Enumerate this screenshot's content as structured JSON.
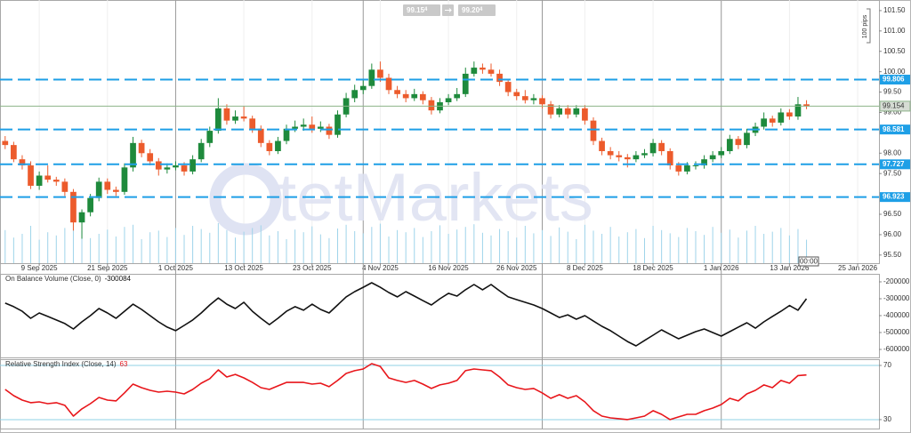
{
  "chart_data": [
    {
      "type": "candlestick",
      "bid": {
        "price": "99.15",
        "pip": "4"
      },
      "ask": {
        "price": "99.20",
        "pip": "4"
      },
      "range_note": "100 pips",
      "time_marker": "00:00",
      "watermark": "tetMarkets",
      "up_color": "#1e8a3c",
      "down_color": "#ec5b2c",
      "volume_color": "#9fd4ea",
      "volume_lim": [
        0,
        100
      ],
      "xlim": [
        -0.5,
        102.5
      ],
      "xticks": [
        {
          "value": 4,
          "label": "9 Sep 2025"
        },
        {
          "value": 12,
          "label": "21 Sep 2025"
        },
        {
          "value": 20,
          "label": "1 Oct 2025"
        },
        {
          "value": 28,
          "label": "13 Oct 2025"
        },
        {
          "value": 36,
          "label": "23 Oct 2025"
        },
        {
          "value": 44,
          "label": "4 Nov 2025"
        },
        {
          "value": 52,
          "label": "16 Nov 2025"
        },
        {
          "value": 60,
          "label": "26 Nov 2025"
        },
        {
          "value": 68,
          "label": "8 Dec 2025"
        },
        {
          "value": 76,
          "label": "18 Dec 2025"
        },
        {
          "value": 84,
          "label": "1 Jan 2026"
        },
        {
          "value": 92,
          "label": "13 Jan 2026"
        },
        {
          "value": 100,
          "label": "25 Jan 2026"
        }
      ],
      "separators": [
        20,
        42,
        63,
        84
      ],
      "ylim": [
        95.3,
        101.76
      ],
      "yticks": [
        {
          "value": 101.5,
          "label": "101.50"
        },
        {
          "value": 101,
          "label": "101.00"
        },
        {
          "value": 100.5,
          "label": "100.50"
        },
        {
          "value": 100,
          "label": "100.00"
        },
        {
          "value": 99.5,
          "label": "99.50"
        },
        {
          "value": 99,
          "label": "99.00"
        },
        {
          "value": 98,
          "label": "98.00"
        },
        {
          "value": 97.5,
          "label": "97.50"
        },
        {
          "value": 96.5,
          "label": "96.50"
        },
        {
          "value": 96,
          "label": "96.00"
        },
        {
          "value": 95.5,
          "label": "95.50"
        }
      ],
      "levels": [
        99.806,
        98.581,
        97.727,
        96.923
      ],
      "level_color": "#1e9fe6",
      "last_price": 99.154,
      "last_color": "#8db58a",
      "ohlc": [
        [
          98.3,
          98.42,
          98.1,
          98.2
        ],
        [
          98.2,
          98.28,
          97.78,
          97.85
        ],
        [
          97.85,
          97.95,
          97.6,
          97.7
        ],
        [
          97.7,
          97.8,
          97.12,
          97.2
        ],
        [
          97.2,
          97.55,
          97.1,
          97.45
        ],
        [
          97.45,
          97.7,
          97.28,
          97.35
        ],
        [
          97.35,
          97.42,
          97.2,
          97.3
        ],
        [
          97.3,
          97.38,
          96.95,
          97.05
        ],
        [
          97.05,
          97.12,
          96.1,
          96.3
        ],
        [
          96.3,
          96.62,
          95.9,
          96.55
        ],
        [
          96.55,
          97.0,
          96.45,
          96.9
        ],
        [
          96.9,
          97.4,
          96.82,
          97.3
        ],
        [
          97.3,
          97.38,
          97.0,
          97.1
        ],
        [
          97.1,
          97.18,
          96.95,
          97.05
        ],
        [
          97.05,
          97.75,
          96.98,
          97.65
        ],
        [
          97.65,
          98.4,
          97.55,
          98.25
        ],
        [
          98.25,
          98.33,
          97.9,
          98.0
        ],
        [
          98.0,
          98.1,
          97.7,
          97.8
        ],
        [
          97.8,
          97.88,
          97.45,
          97.6
        ],
        [
          97.6,
          97.75,
          97.5,
          97.65
        ],
        [
          97.65,
          97.8,
          97.58,
          97.7
        ],
        [
          97.7,
          97.78,
          97.45,
          97.55
        ],
        [
          97.55,
          97.95,
          97.48,
          97.85
        ],
        [
          97.85,
          98.35,
          97.78,
          98.25
        ],
        [
          98.25,
          98.65,
          98.15,
          98.55
        ],
        [
          98.55,
          99.35,
          98.48,
          99.1
        ],
        [
          99.1,
          99.2,
          98.7,
          98.8
        ],
        [
          98.8,
          99.05,
          98.72,
          98.9
        ],
        [
          98.9,
          99.15,
          98.78,
          98.85
        ],
        [
          98.85,
          98.92,
          98.5,
          98.6
        ],
        [
          98.6,
          98.68,
          98.15,
          98.25
        ],
        [
          98.25,
          98.32,
          97.95,
          98.05
        ],
        [
          98.05,
          98.4,
          97.98,
          98.3
        ],
        [
          98.3,
          98.7,
          98.22,
          98.6
        ],
        [
          98.6,
          98.8,
          98.52,
          98.65
        ],
        [
          98.65,
          98.85,
          98.55,
          98.7
        ],
        [
          98.7,
          98.9,
          98.5,
          98.6
        ],
        [
          98.6,
          98.78,
          98.52,
          98.65
        ],
        [
          98.65,
          98.72,
          98.35,
          98.45
        ],
        [
          98.45,
          99.05,
          98.38,
          98.95
        ],
        [
          98.95,
          99.48,
          98.88,
          99.35
        ],
        [
          99.35,
          99.68,
          99.25,
          99.55
        ],
        [
          99.55,
          99.8,
          99.45,
          99.65
        ],
        [
          99.65,
          100.2,
          99.58,
          100.05
        ],
        [
          100.05,
          100.25,
          99.75,
          99.85
        ],
        [
          99.85,
          99.95,
          99.45,
          99.55
        ],
        [
          99.55,
          99.65,
          99.35,
          99.45
        ],
        [
          99.45,
          99.55,
          99.25,
          99.35
        ],
        [
          99.35,
          99.58,
          99.28,
          99.45
        ],
        [
          99.45,
          99.52,
          99.2,
          99.3
        ],
        [
          99.3,
          99.38,
          98.95,
          99.05
        ],
        [
          99.05,
          99.35,
          98.98,
          99.25
        ],
        [
          99.25,
          99.45,
          99.18,
          99.35
        ],
        [
          99.35,
          99.6,
          99.28,
          99.45
        ],
        [
          99.45,
          100.1,
          99.38,
          99.95
        ],
        [
          99.95,
          100.25,
          99.88,
          100.1
        ],
        [
          100.1,
          100.2,
          99.95,
          100.05
        ],
        [
          100.05,
          100.2,
          99.88,
          99.95
        ],
        [
          99.95,
          100.05,
          99.65,
          99.75
        ],
        [
          99.75,
          99.82,
          99.4,
          99.5
        ],
        [
          99.5,
          99.58,
          99.3,
          99.4
        ],
        [
          99.4,
          99.55,
          99.22,
          99.3
        ],
        [
          99.3,
          99.45,
          99.2,
          99.35
        ],
        [
          99.35,
          99.42,
          99.1,
          99.2
        ],
        [
          99.2,
          99.28,
          98.85,
          98.95
        ],
        [
          98.95,
          99.18,
          98.88,
          99.1
        ],
        [
          99.1,
          99.18,
          98.85,
          98.95
        ],
        [
          98.95,
          99.18,
          98.88,
          99.1
        ],
        [
          99.1,
          99.18,
          98.7,
          98.8
        ],
        [
          98.8,
          98.88,
          98.2,
          98.3
        ],
        [
          98.3,
          98.38,
          97.95,
          98.05
        ],
        [
          98.05,
          98.15,
          97.85,
          97.95
        ],
        [
          97.95,
          98.05,
          97.8,
          97.9
        ],
        [
          97.9,
          97.98,
          97.65,
          97.85
        ],
        [
          97.85,
          98.05,
          97.78,
          97.95
        ],
        [
          97.95,
          98.1,
          97.88,
          98.0
        ],
        [
          98.0,
          98.35,
          97.92,
          98.25
        ],
        [
          98.25,
          98.32,
          97.95,
          98.05
        ],
        [
          98.05,
          98.12,
          97.6,
          97.7
        ],
        [
          97.7,
          97.78,
          97.45,
          97.55
        ],
        [
          97.55,
          97.78,
          97.48,
          97.7
        ],
        [
          97.7,
          97.8,
          97.6,
          97.7
        ],
        [
          97.7,
          97.95,
          97.62,
          97.85
        ],
        [
          97.85,
          98.05,
          97.78,
          97.95
        ],
        [
          97.95,
          98.15,
          97.88,
          98.05
        ],
        [
          98.05,
          98.45,
          97.98,
          98.35
        ],
        [
          98.35,
          98.42,
          98.1,
          98.2
        ],
        [
          98.2,
          98.6,
          98.12,
          98.5
        ],
        [
          98.5,
          98.75,
          98.42,
          98.65
        ],
        [
          98.65,
          99.0,
          98.58,
          98.85
        ],
        [
          98.85,
          98.92,
          98.65,
          98.75
        ],
        [
          98.75,
          99.1,
          98.68,
          99.0
        ],
        [
          99.0,
          99.08,
          98.82,
          98.9
        ],
        [
          98.9,
          99.38,
          98.82,
          99.2
        ],
        [
          99.2,
          99.3,
          99.08,
          99.15
        ]
      ],
      "volumes": [
        62,
        48,
        55,
        70,
        44,
        58,
        52,
        66,
        74,
        60,
        47,
        55,
        63,
        50,
        68,
        72,
        45,
        58,
        61,
        49,
        66,
        53,
        70,
        64,
        57,
        75,
        62,
        48,
        59,
        66,
        71,
        52,
        60,
        45,
        63,
        58,
        69,
        54,
        47,
        65,
        72,
        60,
        56,
        68,
        74,
        50,
        62,
        58,
        66,
        49,
        60,
        71,
        55,
        63,
        68,
        73,
        57,
        52,
        64,
        60,
        48,
        70,
        56,
        62,
        51,
        67,
        59,
        45,
        72,
        61,
        55,
        68,
        50,
        58,
        64,
        47,
        70,
        62,
        56,
        49,
        66,
        60,
        53,
        68,
        57,
        63,
        48,
        61,
        70,
        55,
        59,
        66,
        52,
        64,
        44
      ]
    },
    {
      "type": "line",
      "title": "On Balance Volume (Close, 0)",
      "ylim": [
        -647400,
        -152600
      ],
      "yticks": [
        -200000,
        -300000,
        -400000,
        -500000,
        -600000
      ],
      "grid": false,
      "series": [
        {
          "color": "#111111",
          "values": [
            -326000,
            -347000,
            -374000,
            -416000,
            -384000,
            -405000,
            -426000,
            -447000,
            -479000,
            -437000,
            -400000,
            -358000,
            -384000,
            -416000,
            -374000,
            -332000,
            -363000,
            -400000,
            -437000,
            -468000,
            -489000,
            -458000,
            -426000,
            -384000,
            -337000,
            -295000,
            -332000,
            -358000,
            -321000,
            -374000,
            -416000,
            -453000,
            -416000,
            -374000,
            -347000,
            -368000,
            -332000,
            -363000,
            -384000,
            -337000,
            -289000,
            -258000,
            -232000,
            -205000,
            -232000,
            -263000,
            -289000,
            -258000,
            -284000,
            -311000,
            -337000,
            -300000,
            -268000,
            -284000,
            -247000,
            -216000,
            -247000,
            -216000,
            -253000,
            -289000,
            -305000,
            -321000,
            -337000,
            -358000,
            -384000,
            -411000,
            -395000,
            -421000,
            -400000,
            -432000,
            -463000,
            -489000,
            -521000,
            -553000,
            -579000,
            -547000,
            -516000,
            -484000,
            -511000,
            -537000,
            -516000,
            -495000,
            -479000,
            -500000,
            -521000,
            -495000,
            -468000,
            -442000,
            -474000,
            -437000,
            -405000,
            -374000,
            -340000,
            -368000,
            -300084
          ]
        }
      ]
    },
    {
      "type": "line",
      "title": "Relative Strength Index (Close, 14)",
      "ylim": [
        23.4,
        74.6
      ],
      "yticks": [
        70,
        30
      ],
      "grid": true,
      "grid_color": "#8fd0e6",
      "series": [
        {
          "color": "#e8161b",
          "values": [
            52.3,
            47.7,
            44.4,
            42.5,
            43.1,
            41.8,
            42.5,
            40.5,
            32.6,
            37.9,
            41.8,
            46.4,
            44.4,
            43.8,
            49.7,
            56.2,
            53.6,
            51.6,
            50.3,
            51.0,
            50.3,
            49.0,
            52.3,
            56.9,
            60.2,
            66.7,
            61.5,
            63.4,
            60.8,
            57.5,
            53.6,
            52.3,
            54.9,
            57.5,
            57.5,
            57.5,
            56.2,
            56.9,
            54.3,
            58.9,
            64.1,
            66.1,
            67.4,
            71.3,
            69.3,
            60.8,
            58.9,
            57.5,
            58.9,
            56.2,
            53.0,
            55.6,
            56.9,
            58.9,
            66.1,
            67.4,
            66.7,
            66.1,
            61.5,
            55.6,
            53.6,
            52.3,
            53.0,
            49.7,
            45.7,
            48.4,
            45.7,
            47.7,
            43.1,
            36.6,
            32.6,
            31.3,
            30.7,
            30.0,
            31.3,
            32.6,
            36.6,
            33.9,
            30.0,
            32.0,
            33.9,
            33.9,
            36.6,
            38.5,
            41.1,
            45.7,
            43.8,
            49.0,
            51.6,
            55.6,
            53.6,
            58.9,
            56.9,
            62.5,
            63
          ]
        }
      ]
    }
  ]
}
